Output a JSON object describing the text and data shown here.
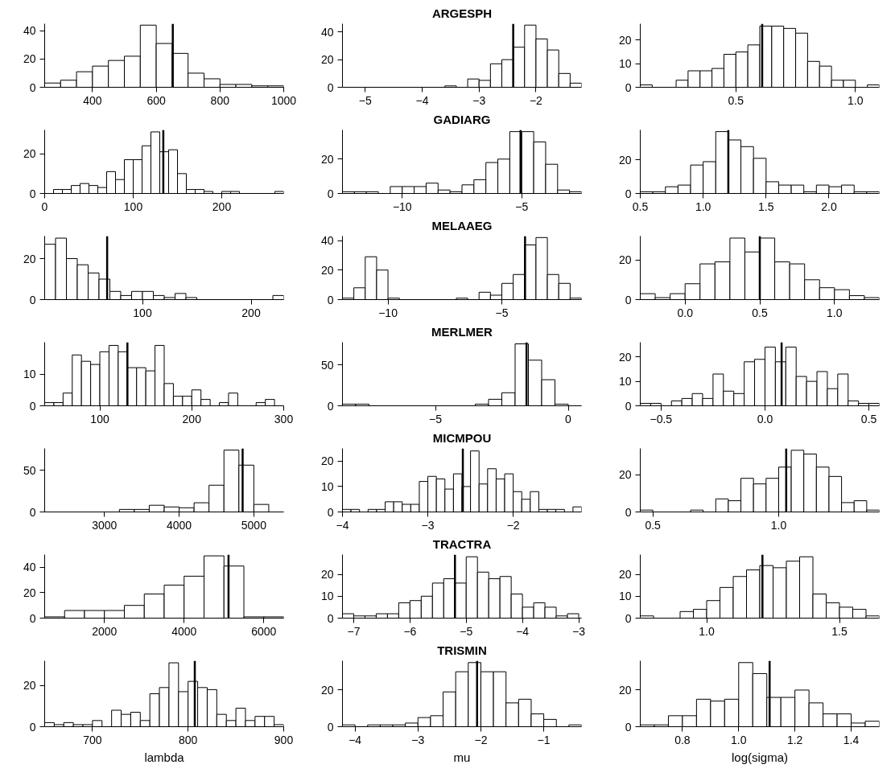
{
  "chart_data": [
    {
      "type": "histogram",
      "bins": [
        250,
        300,
        350,
        400,
        450,
        500,
        550,
        600,
        650,
        700,
        750,
        800,
        850,
        900,
        950,
        1000
      ],
      "values": [
        3,
        5,
        11,
        15,
        19,
        22,
        44,
        31,
        24,
        10,
        6,
        2,
        2,
        1,
        1
      ],
      "xlim": [
        250,
        1000
      ],
      "ylim": [
        0,
        45
      ],
      "xticks": [
        400,
        600,
        800,
        1000
      ],
      "yticks": [
        0,
        20,
        40
      ],
      "ref_lines": [
        {
          "axis": "x",
          "value": 652
        }
      ]
    },
    {
      "type": "histogram",
      "title": "ARGESPH",
      "bins": [
        -5.4,
        -5.2,
        -5.0,
        -4.8,
        -4.6,
        -4.4,
        -4.2,
        -4.0,
        -3.8,
        -3.6,
        -3.4,
        -3.2,
        -3.0,
        -2.8,
        -2.6,
        -2.4,
        -2.2,
        -2.0,
        -1.8,
        -1.6,
        -1.4,
        -1.2
      ],
      "values": [
        0,
        0,
        0,
        0,
        0,
        0,
        0,
        0,
        0,
        1,
        0,
        6,
        5,
        17,
        20,
        29,
        45,
        35,
        27,
        10,
        3
      ],
      "xlim": [
        -5.4,
        -1.2
      ],
      "ylim": [
        0,
        46
      ],
      "xticks": [
        -5,
        -4,
        -3,
        -2
      ],
      "yticks": [
        0,
        20,
        40
      ],
      "ref_lines": [
        {
          "axis": "x",
          "value": -2.4
        }
      ]
    },
    {
      "type": "histogram",
      "bins": [
        0.1,
        0.15,
        0.2,
        0.25,
        0.3,
        0.35,
        0.4,
        0.45,
        0.5,
        0.55,
        0.6,
        0.65,
        0.7,
        0.75,
        0.8,
        0.85,
        0.9,
        0.95,
        1.0,
        1.05,
        1.1
      ],
      "values": [
        1,
        0,
        0,
        3,
        7,
        7,
        8,
        14,
        15,
        18,
        26,
        26,
        25,
        23,
        11,
        9,
        3,
        3,
        0,
        1
      ],
      "xlim": [
        0.1,
        1.1
      ],
      "ylim": [
        0,
        27
      ],
      "xticks": [
        0.5,
        {
          "value": 1,
          "label": "1.0"
        }
      ],
      "yticks": [
        0,
        10,
        20
      ],
      "ref_lines": [
        {
          "axis": "x",
          "value": 0.61
        }
      ]
    },
    {
      "type": "histogram",
      "bins": [
        10,
        20,
        30,
        40,
        50,
        60,
        70,
        80,
        90,
        100,
        110,
        120,
        130,
        140,
        150,
        160,
        170,
        180,
        190,
        200,
        210,
        220,
        230,
        240,
        250,
        260,
        270
      ],
      "values": [
        2,
        2,
        4,
        5,
        4,
        3,
        11,
        7,
        17,
        17,
        24,
        31,
        21,
        22,
        10,
        2,
        2,
        1,
        0,
        1,
        1,
        0,
        0,
        0,
        0,
        1
      ],
      "xlim": [
        0,
        270
      ],
      "ylim": [
        0,
        32
      ],
      "xticks": [
        0,
        100,
        200
      ],
      "yticks": [
        0,
        20
      ],
      "ref_lines": [
        {
          "axis": "x",
          "value": 134
        }
      ]
    },
    {
      "type": "histogram",
      "title": "GADIARG",
      "bins": [
        -12.5,
        -12,
        -11.5,
        -11,
        -10.5,
        -10,
        -9.5,
        -9,
        -8.5,
        -8,
        -7.5,
        -7,
        -6.5,
        -6,
        -5.5,
        -5,
        -4.5,
        -4,
        -3.5,
        -3,
        -2.5
      ],
      "values": [
        1,
        1,
        1,
        0,
        4,
        4,
        4,
        6,
        2,
        1,
        5,
        8,
        18,
        20,
        36,
        36,
        30,
        17,
        2,
        1
      ],
      "xlim": [
        -12.5,
        -2.5
      ],
      "ylim": [
        0,
        37
      ],
      "xticks": [
        -10,
        -5
      ],
      "yticks": [
        0,
        20
      ],
      "ref_lines": [
        {
          "axis": "x",
          "value": -5.05
        }
      ]
    },
    {
      "type": "histogram",
      "bins": [
        0.5,
        0.6,
        0.7,
        0.8,
        0.9,
        1.0,
        1.1,
        1.2,
        1.3,
        1.4,
        1.5,
        1.6,
        1.7,
        1.8,
        1.9,
        2.0,
        2.1,
        2.2,
        2.3,
        2.4
      ],
      "values": [
        1,
        1,
        4,
        5,
        17,
        19,
        37,
        32,
        28,
        21,
        7,
        5,
        5,
        1,
        5,
        4,
        5,
        1,
        1
      ],
      "xlim": [
        0.5,
        2.4
      ],
      "ylim": [
        0,
        38
      ],
      "xticks": [
        0.5,
        {
          "value": 1,
          "label": "1.0"
        },
        1.5,
        {
          "value": 2,
          "label": "2.0"
        }
      ],
      "yticks": [
        0,
        20
      ],
      "ref_lines": [
        {
          "axis": "x",
          "value": 1.2
        }
      ]
    },
    {
      "type": "histogram",
      "bins": [
        10,
        20,
        30,
        40,
        50,
        60,
        70,
        80,
        90,
        100,
        110,
        120,
        130,
        140,
        150,
        160,
        170,
        180,
        190,
        200,
        210,
        220,
        230
      ],
      "values": [
        27,
        30,
        20,
        17,
        13,
        10,
        4,
        2,
        4,
        4,
        2,
        1,
        3,
        1,
        0,
        0,
        0,
        0,
        0,
        0,
        0,
        2
      ],
      "xlim": [
        10,
        230
      ],
      "ylim": [
        0,
        31
      ],
      "xticks": [
        100,
        200
      ],
      "yticks": [
        0,
        20
      ],
      "ref_lines": [
        {
          "axis": "x",
          "value": 67.5
        }
      ]
    },
    {
      "type": "histogram",
      "title": "MELAAEG",
      "bins": [
        -12,
        -11.5,
        -11,
        -10.5,
        -10,
        -9.5,
        -9,
        -8.5,
        -8,
        -7.5,
        -7,
        -6.5,
        -6,
        -5.5,
        -5,
        -4.5,
        -4,
        -3.5,
        -3,
        -2.5,
        -2,
        -1.5
      ],
      "values": [
        1,
        8,
        29,
        20,
        1,
        0,
        0,
        0,
        0,
        0,
        1,
        0,
        5,
        3,
        11,
        17,
        37,
        42,
        17,
        11,
        1
      ],
      "xlim": [
        -12,
        -1.5
      ],
      "ylim": [
        0,
        43
      ],
      "xticks": [
        -10,
        -5
      ],
      "yticks": [
        0,
        20,
        40
      ],
      "ref_lines": [
        {
          "axis": "x",
          "value": -3.98
        }
      ]
    },
    {
      "type": "histogram",
      "bins": [
        -0.3,
        -0.2,
        -0.1,
        0,
        0.1,
        0.2,
        0.3,
        0.4,
        0.5,
        0.6,
        0.7,
        0.8,
        0.9,
        1.0,
        1.1,
        1.2,
        1.3
      ],
      "values": [
        3,
        1,
        3,
        8,
        18,
        19,
        31,
        24,
        31,
        19,
        18,
        10,
        6,
        5,
        2,
        1
      ],
      "xlim": [
        -0.3,
        1.3
      ],
      "ylim": [
        0,
        32
      ],
      "xticks": [
        {
          "value": 0,
          "label": "0.0"
        },
        0.5,
        {
          "value": 1,
          "label": "1.0"
        }
      ],
      "yticks": [
        0,
        20
      ],
      "ref_lines": [
        {
          "axis": "x",
          "value": 0.5
        }
      ]
    },
    {
      "type": "histogram",
      "bins": [
        40,
        50,
        60,
        70,
        80,
        90,
        100,
        110,
        120,
        130,
        140,
        150,
        160,
        170,
        180,
        190,
        200,
        210,
        220,
        230,
        240,
        250,
        260,
        270,
        280,
        290
      ],
      "values": [
        1,
        1,
        4,
        16,
        14,
        13,
        17,
        19,
        17,
        12,
        12,
        11,
        19,
        7,
        3,
        3,
        5,
        2,
        0,
        1,
        4,
        0,
        0,
        1,
        2
      ],
      "xlim": [
        40,
        300
      ],
      "ylim": [
        0,
        20
      ],
      "xticks": [
        100,
        200,
        300
      ],
      "yticks": [
        0,
        10
      ],
      "ref_lines": [
        {
          "axis": "x",
          "value": 130
        }
      ]
    },
    {
      "type": "histogram",
      "title": "MERLMER",
      "bins": [
        -8.5,
        -8,
        -7.5,
        -7,
        -6.5,
        -6,
        -5.5,
        -5,
        -4.5,
        -4,
        -3.5,
        -3,
        -2.5,
        -2,
        -1.5,
        -1,
        -0.5,
        0,
        0.5
      ],
      "values": [
        2,
        2,
        0,
        0,
        0,
        0,
        0,
        0,
        0,
        0,
        2,
        8,
        16,
        76,
        56,
        32,
        2,
        0
      ],
      "xlim": [
        -8.5,
        0.5
      ],
      "ylim": [
        0,
        78
      ],
      "xticks": [
        -5,
        0
      ],
      "yticks": [
        0,
        50
      ],
      "ref_lines": [
        {
          "axis": "x",
          "value": -1.57
        }
      ]
    },
    {
      "type": "histogram",
      "bins": [
        -0.6,
        -0.55,
        -0.5,
        -0.45,
        -0.4,
        -0.35,
        -0.3,
        -0.25,
        -0.2,
        -0.15,
        -0.1,
        -0.05,
        0,
        0.05,
        0.1,
        0.15,
        0.2,
        0.25,
        0.3,
        0.35,
        0.4,
        0.45,
        0.5,
        0.55
      ],
      "values": [
        1,
        1,
        0,
        2,
        3,
        5,
        3,
        13,
        6,
        5,
        18,
        19,
        24,
        18,
        24,
        12,
        10,
        14,
        7,
        13,
        2,
        1,
        1
      ],
      "xlim": [
        -0.6,
        0.55
      ],
      "ylim": [
        0,
        26
      ],
      "xticks": [
        -0.5,
        {
          "value": 0,
          "label": "0.0"
        },
        0.5
      ],
      "yticks": [
        0,
        10,
        20
      ],
      "ref_lines": [
        {
          "axis": "x",
          "value": 0.08
        }
      ]
    },
    {
      "type": "histogram",
      "bins": [
        2200,
        2400,
        2600,
        2800,
        3000,
        3200,
        3400,
        3600,
        3800,
        4000,
        4200,
        4400,
        4600,
        4800,
        5000,
        5200,
        5400
      ],
      "values": [
        0,
        0,
        0,
        0,
        0,
        3,
        3,
        8,
        6,
        5,
        11,
        32,
        74,
        56,
        9,
        0
      ],
      "xlim": [
        2200,
        5400
      ],
      "ylim": [
        0,
        76
      ],
      "xticks": [
        3000,
        4000,
        5000
      ],
      "yticks": [
        0,
        50
      ],
      "ref_lines": [
        {
          "axis": "x",
          "value": 4850
        }
      ]
    },
    {
      "type": "histogram",
      "title": "MICMPOU",
      "bins": [
        -4.0,
        -3.9,
        -3.8,
        -3.7,
        -3.6,
        -3.5,
        -3.4,
        -3.3,
        -3.2,
        -3.1,
        -3.0,
        -2.9,
        -2.8,
        -2.7,
        -2.6,
        -2.5,
        -2.4,
        -2.3,
        -2.2,
        -2.1,
        -2.0,
        -1.9,
        -1.8,
        -1.7,
        -1.6,
        -1.5,
        -1.4,
        -1.3,
        -1.2
      ],
      "values": [
        1,
        1,
        0,
        1,
        1,
        4,
        4,
        3,
        3,
        12,
        14,
        13,
        9,
        15,
        10,
        24,
        11,
        17,
        13,
        15,
        8,
        5,
        8,
        1,
        1,
        1,
        0,
        2
      ],
      "xlim": [
        -4,
        -1.2
      ],
      "ylim": [
        0,
        25
      ],
      "xticks": [
        -4,
        -3,
        -2
      ],
      "yticks": [
        0,
        10,
        20
      ],
      "ref_lines": [
        {
          "axis": "x",
          "value": -2.59
        }
      ]
    },
    {
      "type": "histogram",
      "bins": [
        0.45,
        0.5,
        0.55,
        0.6,
        0.65,
        0.7,
        0.75,
        0.8,
        0.85,
        0.9,
        0.95,
        1.0,
        1.05,
        1.1,
        1.15,
        1.2,
        1.25,
        1.3,
        1.35,
        1.4
      ],
      "values": [
        1,
        0,
        0,
        0,
        1,
        0,
        7,
        6,
        18,
        15,
        18,
        24,
        33,
        31,
        24,
        19,
        5,
        6,
        1
      ],
      "xlim": [
        0.45,
        1.4
      ],
      "ylim": [
        0,
        34
      ],
      "xticks": [
        0.5,
        {
          "value": 1,
          "label": "1.0"
        }
      ],
      "yticks": [
        0,
        20
      ],
      "ref_lines": [
        {
          "axis": "x",
          "value": 1.03
        }
      ]
    },
    {
      "type": "histogram",
      "bins": [
        500,
        1000,
        1500,
        2000,
        2500,
        3000,
        3500,
        4000,
        4500,
        5000,
        5500,
        6000,
        6500
      ],
      "values": [
        1,
        6,
        6,
        6,
        10,
        19,
        26,
        33,
        49,
        41,
        1,
        1
      ],
      "xlim": [
        500,
        6500
      ],
      "ylim": [
        0,
        50
      ],
      "xticks": [
        2000,
        4000,
        6000
      ],
      "yticks": [
        0,
        20,
        40
      ],
      "ref_lines": [
        {
          "axis": "x",
          "value": 5115
        }
      ]
    },
    {
      "type": "histogram",
      "title": "TRACTRA",
      "bins": [
        -7.2,
        -7.0,
        -6.8,
        -6.6,
        -6.4,
        -6.2,
        -6.0,
        -5.8,
        -5.6,
        -5.4,
        -5.2,
        -5.0,
        -4.8,
        -4.6,
        -4.4,
        -4.2,
        -4.0,
        -3.8,
        -3.6,
        -3.4,
        -3.2,
        -3.0
      ],
      "values": [
        2,
        1,
        1,
        2,
        2,
        7,
        8,
        10,
        16,
        18,
        16,
        28,
        21,
        18,
        19,
        11,
        5,
        7,
        5,
        1,
        2
      ],
      "xlim": [
        -7.2,
        -2.95
      ],
      "ylim": [
        0,
        29
      ],
      "xticks": [
        -7,
        -6,
        -5,
        -4,
        -3
      ],
      "yticks": [
        0,
        10,
        20
      ],
      "ref_lines": [
        {
          "axis": "x",
          "value": -5.2
        }
      ]
    },
    {
      "type": "histogram",
      "bins": [
        0.75,
        0.8,
        0.85,
        0.9,
        0.95,
        1.0,
        1.05,
        1.1,
        1.15,
        1.2,
        1.25,
        1.3,
        1.35,
        1.4,
        1.45,
        1.5,
        1.55,
        1.6,
        1.65
      ],
      "values": [
        1,
        0,
        0,
        3,
        4,
        8,
        14,
        19,
        22,
        24,
        23,
        26,
        28,
        11,
        7,
        5,
        4,
        1
      ],
      "xlim": [
        0.75,
        1.65
      ],
      "ylim": [
        0,
        29
      ],
      "xticks": [
        {
          "value": 1,
          "label": "1.0"
        },
        1.5
      ],
      "yticks": [
        0,
        10,
        20
      ],
      "ref_lines": [
        {
          "axis": "x",
          "value": 1.21
        }
      ]
    },
    {
      "type": "histogram",
      "xlabel": "lambda",
      "bins": [
        650,
        660,
        670,
        680,
        690,
        700,
        710,
        720,
        730,
        740,
        750,
        760,
        770,
        780,
        790,
        800,
        810,
        820,
        830,
        840,
        850,
        860,
        870,
        880,
        890,
        900
      ],
      "values": [
        2,
        1,
        2,
        1,
        1,
        3,
        0,
        8,
        6,
        7,
        3,
        16,
        19,
        31,
        17,
        22,
        19,
        18,
        6,
        3,
        9,
        3,
        5,
        5,
        1
      ],
      "xlim": [
        650,
        900
      ],
      "ylim": [
        0,
        32
      ],
      "xticks": [
        700,
        800,
        900
      ],
      "yticks": [
        0,
        20
      ],
      "ref_lines": [
        {
          "axis": "x",
          "value": 807
        }
      ]
    },
    {
      "type": "histogram",
      "title": "TRISMIN",
      "xlabel": "mu",
      "bins": [
        -4.2,
        -4.0,
        -3.8,
        -3.6,
        -3.4,
        -3.2,
        -3.0,
        -2.8,
        -2.6,
        -2.4,
        -2.2,
        -2.0,
        -1.8,
        -1.6,
        -1.4,
        -1.2,
        -1.0,
        -0.8,
        -0.6,
        -0.4
      ],
      "values": [
        1,
        0,
        1,
        1,
        1,
        2,
        5,
        6,
        19,
        30,
        35,
        30,
        30,
        13,
        15,
        7,
        4,
        0,
        1
      ],
      "xlim": [
        -4.2,
        -0.4
      ],
      "ylim": [
        0,
        36
      ],
      "xticks": [
        -4,
        -3,
        -2,
        -1
      ],
      "yticks": [
        0,
        20
      ],
      "ref_lines": [
        {
          "axis": "x",
          "value": -2.06
        }
      ]
    },
    {
      "type": "histogram",
      "xlabel": "log(sigma)",
      "bins": [
        0.65,
        0.7,
        0.75,
        0.8,
        0.85,
        0.9,
        0.95,
        1.0,
        1.05,
        1.1,
        1.15,
        1.2,
        1.25,
        1.3,
        1.35,
        1.4,
        1.45,
        1.5
      ],
      "values": [
        1,
        1,
        6,
        6,
        15,
        14,
        15,
        35,
        29,
        16,
        16,
        20,
        13,
        7,
        7,
        2,
        3
      ],
      "xlim": [
        0.65,
        1.5
      ],
      "ylim": [
        0,
        36
      ],
      "xticks": [
        0.8,
        {
          "value": 1,
          "label": "1.0"
        },
        1.2,
        1.4
      ],
      "yticks": [
        0,
        20
      ],
      "ref_lines": [
        {
          "axis": "x",
          "value": 1.11
        }
      ]
    }
  ]
}
